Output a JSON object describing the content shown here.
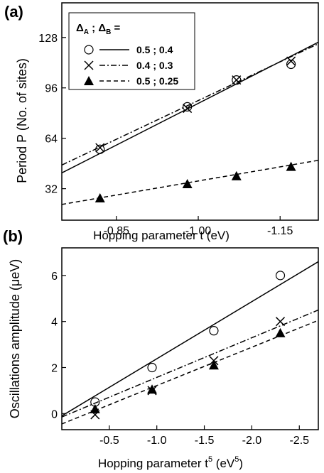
{
  "panels": [
    {
      "label": "(a)",
      "xlabel": "Hopping parameter t (eV)",
      "ylabel": "Period P (No. of sites)",
      "xticks": [
        "-0.85",
        "-1.00",
        "-1.15"
      ],
      "yticks": [
        "32",
        "64",
        "96",
        "128"
      ],
      "legend_header": {
        "delta_a": "Δ",
        "sub_a": "A",
        "sep": " ; ",
        "delta_b": "Δ",
        "sub_b": "B",
        "eq": " ="
      },
      "legend": [
        {
          "text": "0.5 ; 0.4",
          "marker": "circle",
          "line": "solid"
        },
        {
          "text": "0.4 ; 0.3",
          "marker": "cross",
          "line": "dashdot"
        },
        {
          "text": "0.5 ; 0.25",
          "marker": "triangle",
          "line": "dashed"
        }
      ]
    },
    {
      "label": "(b)",
      "xlabel_main": "Hopping parameter t",
      "xlabel_sup": "5",
      "xlabel_unit": " (eV",
      "xlabel_unit_sup": "5",
      "xlabel_close": ")",
      "ylabel": "Oscillations amplitude (μeV)",
      "xticks": [
        "-0.5",
        "-1.0",
        "-1.5",
        "-2.0",
        "-2.5"
      ],
      "yticks": [
        "0",
        "2",
        "4",
        "6"
      ]
    }
  ],
  "chart_data": [
    {
      "type": "scatter",
      "xlabel": "Hopping parameter t (eV)",
      "ylabel": "Period P (No. of sites)",
      "x_axis": "reversed",
      "xlim": [
        -0.75,
        -1.22
      ],
      "ylim": [
        12,
        150
      ],
      "grid": false,
      "legend_position": "top-left",
      "series": [
        {
          "name": "0.5 ; 0.4",
          "marker": "circle",
          "line": "solid",
          "x": [
            -0.82,
            -0.98,
            -1.07,
            -1.17
          ],
          "y": [
            57,
            84,
            101,
            111
          ],
          "fit_line": {
            "x": [
              -0.75,
              -1.22
            ],
            "y": [
              42,
              125
            ]
          }
        },
        {
          "name": "0.4 ; 0.3",
          "marker": "cross",
          "line": "dashdot",
          "x": [
            -0.82,
            -0.98,
            -1.07,
            -1.17
          ],
          "y": [
            58,
            83,
            101,
            113
          ],
          "fit_line": {
            "x": [
              -0.75,
              -1.22
            ],
            "y": [
              47,
              124
            ]
          }
        },
        {
          "name": "0.5 ; 0.25",
          "marker": "filled-triangle",
          "line": "dashed",
          "x": [
            -0.82,
            -0.98,
            -1.07,
            -1.17
          ],
          "y": [
            26,
            35,
            40,
            46
          ],
          "fit_line": {
            "x": [
              -0.75,
              -1.22
            ],
            "y": [
              22,
              50
            ]
          }
        }
      ]
    },
    {
      "type": "scatter",
      "xlabel": "Hopping parameter t^5 (eV^5)",
      "ylabel": "Oscillations amplitude (μeV)",
      "x_axis": "reversed",
      "xlim": [
        0.0,
        -2.7
      ],
      "ylim": [
        -0.7,
        7.2
      ],
      "grid": false,
      "series": [
        {
          "name": "0.5 ; 0.4",
          "marker": "circle",
          "line": "solid",
          "x": [
            -0.35,
            -0.95,
            -1.6,
            -2.3
          ],
          "y": [
            0.5,
            2.0,
            3.6,
            6.0
          ],
          "fit_line": {
            "x": [
              0.0,
              -2.7
            ],
            "y": [
              -0.1,
              6.6
            ]
          }
        },
        {
          "name": "0.4 ; 0.3",
          "marker": "cross",
          "line": "dashdot",
          "x": [
            -0.35,
            -0.95,
            -1.6,
            -2.3
          ],
          "y": [
            -0.05,
            1.0,
            2.3,
            4.0
          ],
          "fit_line": {
            "x": [
              0.0,
              -2.7
            ],
            "y": [
              -0.15,
              4.5
            ]
          }
        },
        {
          "name": "0.5 ; 0.25",
          "marker": "filled-triangle",
          "line": "dashed",
          "x": [
            -0.35,
            -0.95,
            -1.6,
            -2.3
          ],
          "y": [
            0.2,
            1.05,
            2.1,
            3.5
          ],
          "fit_line": {
            "x": [
              0.0,
              -2.7
            ],
            "y": [
              -0.45,
              4.05
            ]
          }
        }
      ]
    }
  ]
}
